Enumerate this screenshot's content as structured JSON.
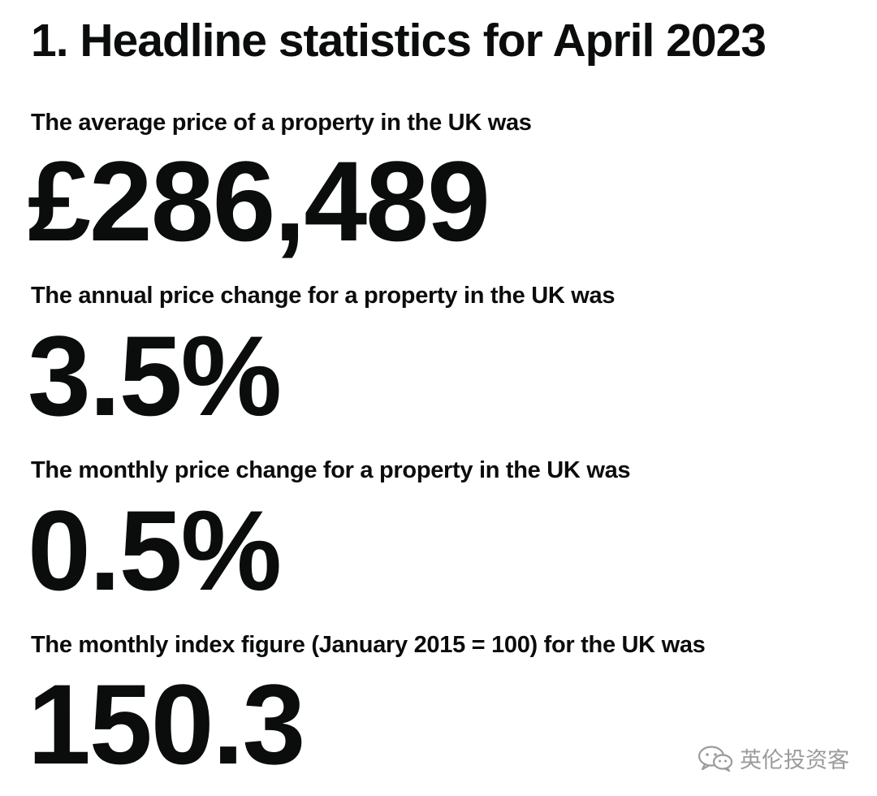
{
  "heading": {
    "title": "1. Headline statistics for April 2023"
  },
  "stats": [
    {
      "label": "The average price of a property in the UK was",
      "value": "£286,489"
    },
    {
      "label": "The annual price change for a property in the UK was",
      "value": "3.5%"
    },
    {
      "label": "The monthly price change for a property in the UK was",
      "value": "0.5%"
    },
    {
      "label": "The monthly index figure (January 2015 = 100) for the UK was",
      "value": "150.3"
    }
  ],
  "watermark": {
    "icon": "wechat-icon",
    "text": "英伦投资客"
  },
  "colors": {
    "text": "#0b0c0c",
    "background": "#ffffff",
    "watermark": "#8a8a8a"
  }
}
